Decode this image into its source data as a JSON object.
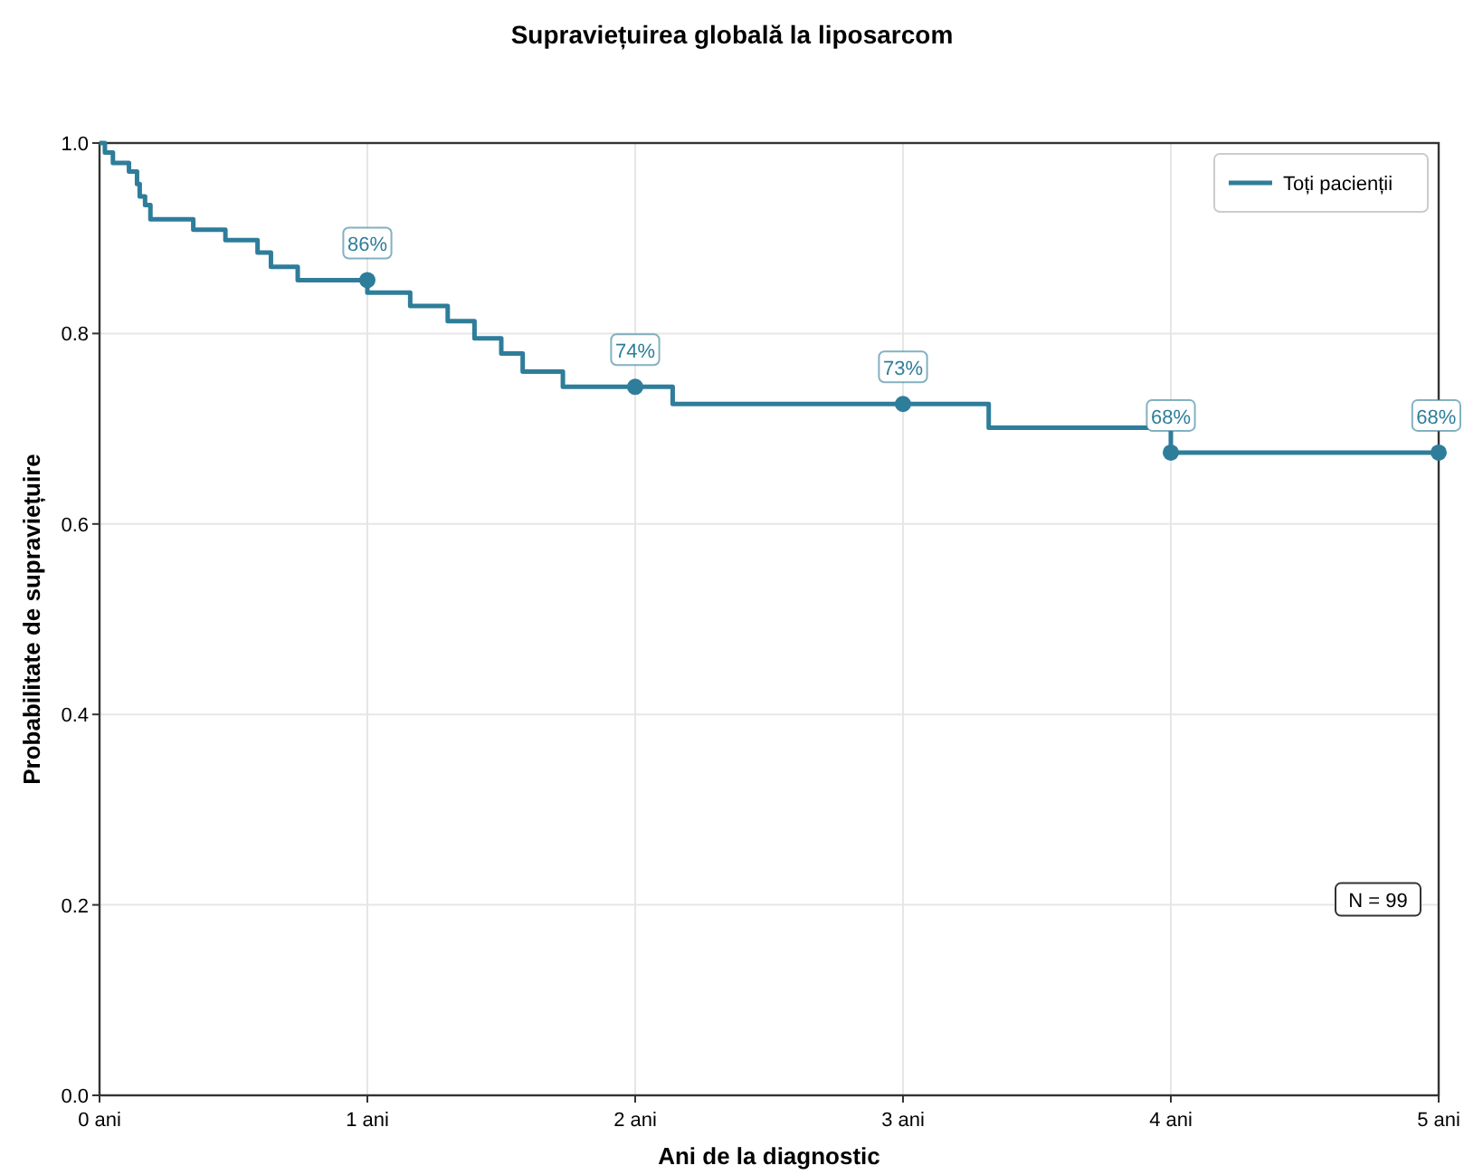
{
  "chart_data": {
    "type": "step",
    "title": "Supraviețuirea globală la liposarcom",
    "xlabel": "Ani de la diagnostic",
    "ylabel": "Probabilitate de supraviețuire",
    "xlim": [
      0,
      5
    ],
    "xticks": [
      {
        "value": 0,
        "label": "0 ani"
      },
      {
        "value": 1,
        "label": "1 ani"
      },
      {
        "value": 2,
        "label": "2 ani"
      },
      {
        "value": 3,
        "label": "3 ani"
      },
      {
        "value": 4,
        "label": "4 ani"
      },
      {
        "value": 5,
        "label": "5 ani"
      }
    ],
    "ylim": [
      0,
      1
    ],
    "yticks": [
      {
        "value": 0,
        "label": "0.0"
      },
      0.2,
      0.4,
      0.6,
      0.8,
      {
        "value": 1,
        "label": "1.0"
      }
    ],
    "grid": true,
    "legend": "top right",
    "series": [
      {
        "name": "Toți pacienții",
        "color": "#2e7d9a",
        "x": [
          0,
          0.02,
          0.05,
          0.11,
          0.14,
          0.15,
          0.17,
          0.19,
          0.35,
          0.47,
          0.59,
          0.64,
          0.74,
          1.0,
          1.16,
          1.3,
          1.4,
          1.5,
          1.58,
          1.73,
          2.14,
          3.32,
          4.0,
          5.0
        ],
        "values": [
          1.0,
          0.99,
          0.979,
          0.97,
          0.957,
          0.944,
          0.935,
          0.92,
          0.909,
          0.898,
          0.885,
          0.87,
          0.856,
          0.843,
          0.829,
          0.813,
          0.795,
          0.779,
          0.76,
          0.744,
          0.726,
          0.701,
          0.675,
          0.675
        ]
      },
      {
        "type": "scatter",
        "marker": "circle",
        "color": "#2e7d9a",
        "x": [
          1,
          2,
          3,
          4,
          5
        ],
        "values": [
          0.856,
          0.744,
          0.726,
          0.675,
          0.675
        ],
        "value_labels": [
          "86%",
          "74%",
          "73%",
          "68%",
          "68%"
        ]
      }
    ],
    "annotations": [
      "N = 99"
    ]
  }
}
